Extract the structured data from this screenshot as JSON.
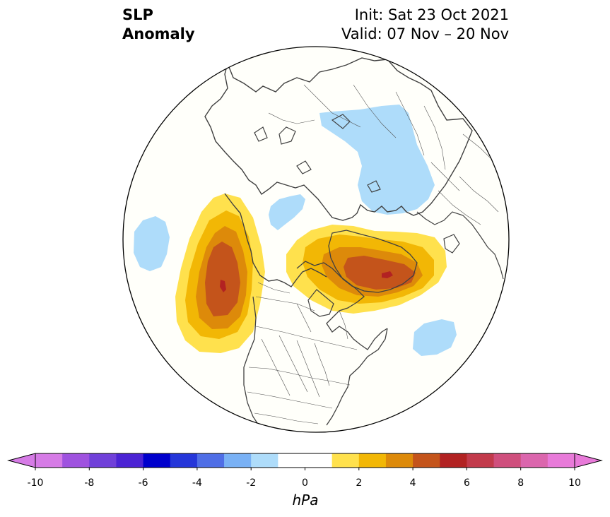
{
  "title": {
    "left_line1": "SLP",
    "left_line2": "Anomaly",
    "init": "Init: Sat 23 Oct 2021",
    "valid": "Valid: 07 Nov – 20 Nov"
  },
  "colorbar": {
    "unit": "hPa",
    "ticks": [
      "-10",
      "-8",
      "-6",
      "-4",
      "-2",
      "0",
      "2",
      "4",
      "6",
      "8",
      "10"
    ],
    "colors": [
      "#d67be6",
      "#9f52df",
      "#7040d9",
      "#4b23d4",
      "#0000cc",
      "#2536d9",
      "#4f6ee6",
      "#79b1f5",
      "#aedcfa",
      "#ffffff",
      "#ffffff",
      "#ffe14d",
      "#f2b705",
      "#dd8a0a",
      "#c4541b",
      "#b22222",
      "#c23a4b",
      "#cf4f7d",
      "#db66ad",
      "#e87ad9"
    ]
  },
  "map": {
    "projection": "north polar stereographic",
    "ocean_color": "#fffffa",
    "coastline_color": "#404040"
  }
}
